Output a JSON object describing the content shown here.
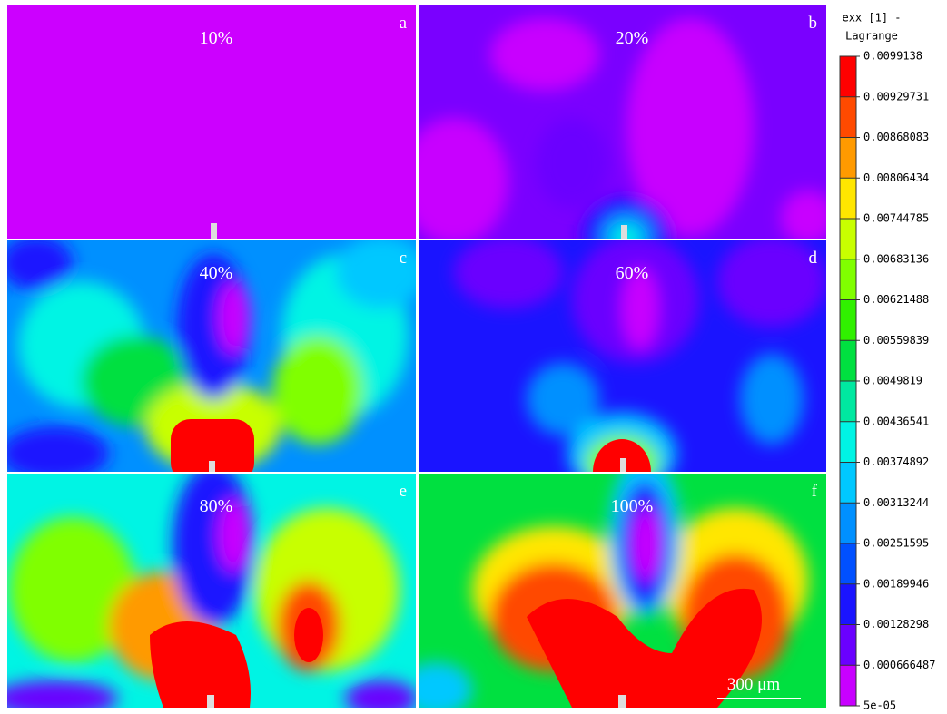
{
  "panels": [
    {
      "letter": "a",
      "label": "10%"
    },
    {
      "letter": "b",
      "label": "20%"
    },
    {
      "letter": "c",
      "label": "40%"
    },
    {
      "letter": "d",
      "label": "60%"
    },
    {
      "letter": "e",
      "label": "80%"
    },
    {
      "letter": "f",
      "label": "100%"
    }
  ],
  "scale_bar": "300 μm",
  "colorbar": {
    "title": [
      "exx [1] -",
      "Lagrange"
    ],
    "labels": [
      "0.0099138",
      "0.00929731",
      "0.00868083",
      "0.00806434",
      "0.00744785",
      "0.00683136",
      "0.00621488",
      "0.00559839",
      "0.0049819",
      "0.00436541",
      "0.00374892",
      "0.00313244",
      "0.00251595",
      "0.00189946",
      "0.00128298",
      "0.000666487",
      "5e-05"
    ],
    "colors": [
      "#ff0000",
      "#ff4a00",
      "#ff9a00",
      "#ffe600",
      "#c8ff00",
      "#80ff00",
      "#30f000",
      "#00e040",
      "#00e8a0",
      "#00f4e4",
      "#00c8ff",
      "#0090ff",
      "#0050ff",
      "#1a14ff",
      "#6a00ff",
      "#c800ff"
    ]
  }
}
